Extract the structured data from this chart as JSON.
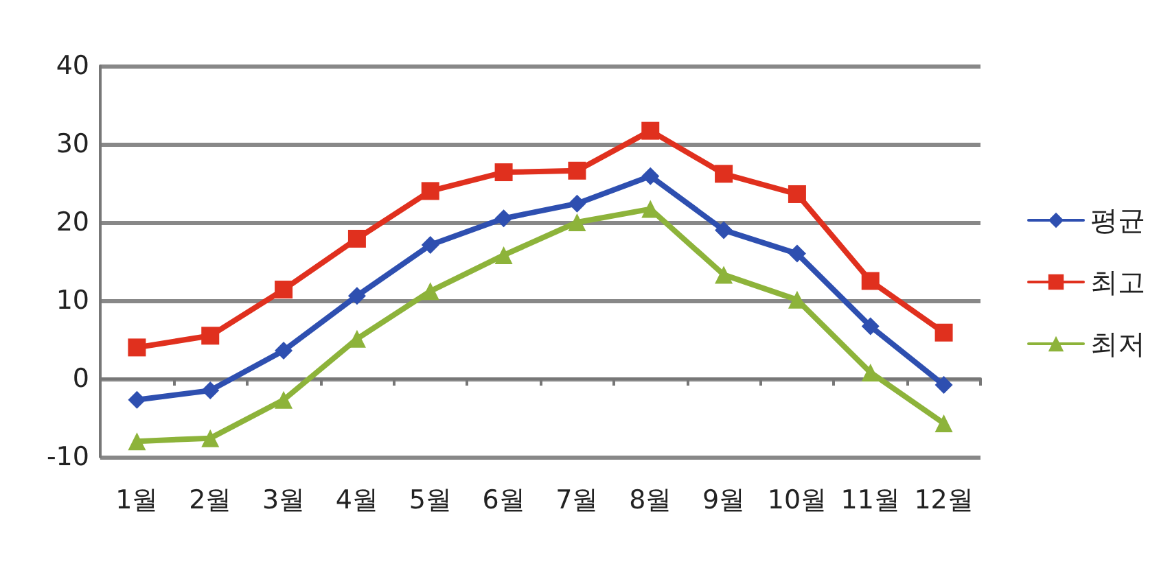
{
  "chart_data": {
    "type": "line",
    "categories": [
      "1월",
      "2월",
      "3월",
      "4월",
      "5월",
      "6월",
      "7월",
      "8월",
      "9월",
      "10월",
      "11월",
      "12월"
    ],
    "series": [
      {
        "name": "평균",
        "color": "#2e4fb0",
        "marker": "diamond",
        "values": [
          -2.7,
          -1.5,
          3.6,
          10.6,
          17.1,
          20.5,
          22.4,
          25.9,
          19,
          16,
          6.7,
          -0.8
        ]
      },
      {
        "name": "최고",
        "color": "#e0301e",
        "marker": "square",
        "values": [
          4,
          5.5,
          11.4,
          17.9,
          24,
          26.4,
          26.6,
          31.7,
          26.2,
          23.6,
          12.5,
          5.9
        ]
      },
      {
        "name": "최저",
        "color": "#8db33a",
        "marker": "triangle",
        "values": [
          -8,
          -7.6,
          -2.7,
          5.1,
          11.2,
          15.8,
          20,
          21.7,
          13.3,
          10.1,
          0.8,
          -5.7
        ]
      }
    ],
    "ylim": [
      -10,
      40
    ],
    "yticks": [
      -10,
      0,
      10,
      20,
      30,
      40
    ],
    "grid": "y",
    "legend": "right"
  }
}
